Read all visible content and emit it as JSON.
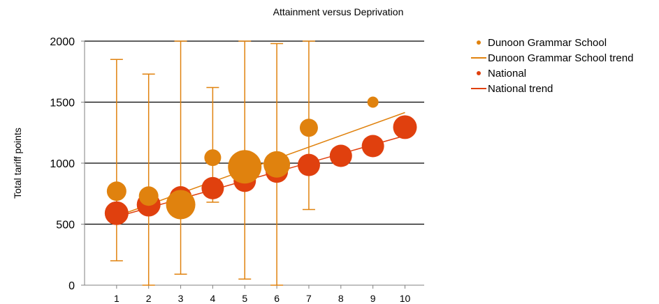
{
  "chart_data": {
    "type": "scatter",
    "title": "Attainment versus Deprivation",
    "xlabel": "",
    "ylabel": "Total tariff points",
    "xlim": [
      0,
      10.6
    ],
    "ylim": [
      0,
      2000
    ],
    "x_ticks": [
      1,
      2,
      3,
      4,
      5,
      6,
      7,
      8,
      9,
      10
    ],
    "y_ticks": [
      0,
      500,
      1000,
      1500,
      2000
    ],
    "grid": "horizontal",
    "legend_position": "right",
    "series": [
      {
        "name": "Dunoon Grammar School",
        "kind": "bubble",
        "color": "#e0820e",
        "points": [
          {
            "x": 1,
            "y": 770,
            "size": 14,
            "err_low": 200,
            "err_high": 1850
          },
          {
            "x": 2,
            "y": 730,
            "size": 14,
            "err_low": 0,
            "err_high": 1730
          },
          {
            "x": 3,
            "y": 660,
            "size": 21,
            "err_low": 90,
            "err_high": 2000
          },
          {
            "x": 4,
            "y": 1045,
            "size": 12,
            "err_low": 680,
            "err_high": 1620
          },
          {
            "x": 5,
            "y": 970,
            "size": 24,
            "err_low": 50,
            "err_high": 2000
          },
          {
            "x": 6,
            "y": 990,
            "size": 19,
            "err_low": 0,
            "err_high": 1980
          },
          {
            "x": 7,
            "y": 1290,
            "size": 13,
            "err_low": 620,
            "err_high": 2000
          },
          {
            "x": 9,
            "y": 1500,
            "size": 8
          }
        ]
      },
      {
        "name": "Dunoon Grammar School trend",
        "kind": "line",
        "color": "#e0820e",
        "points": [
          {
            "x": 1,
            "y": 565
          },
          {
            "x": 10,
            "y": 1415
          }
        ]
      },
      {
        "name": "National",
        "kind": "bubble",
        "color": "#e0400e",
        "points": [
          {
            "x": 1,
            "y": 590,
            "size": 17
          },
          {
            "x": 2,
            "y": 660,
            "size": 17
          },
          {
            "x": 3,
            "y": 720,
            "size": 16
          },
          {
            "x": 4,
            "y": 795,
            "size": 16
          },
          {
            "x": 5,
            "y": 855,
            "size": 16
          },
          {
            "x": 6,
            "y": 930,
            "size": 16
          },
          {
            "x": 7,
            "y": 985,
            "size": 16
          },
          {
            "x": 8,
            "y": 1060,
            "size": 16
          },
          {
            "x": 9,
            "y": 1140,
            "size": 16
          },
          {
            "x": 10,
            "y": 1295,
            "size": 17
          }
        ]
      },
      {
        "name": "National trend",
        "kind": "line",
        "color": "#e0400e",
        "points": [
          {
            "x": 1,
            "y": 560
          },
          {
            "x": 10,
            "y": 1225
          }
        ]
      }
    ],
    "legend": [
      {
        "label": "Dunoon Grammar School",
        "marker": "dot",
        "color": "#e0820e"
      },
      {
        "label": "Dunoon Grammar School trend",
        "marker": "line",
        "color": "#e0820e"
      },
      {
        "label": "National",
        "marker": "dot",
        "color": "#e0400e"
      },
      {
        "label": "National trend",
        "marker": "line",
        "color": "#e0400e"
      }
    ]
  }
}
